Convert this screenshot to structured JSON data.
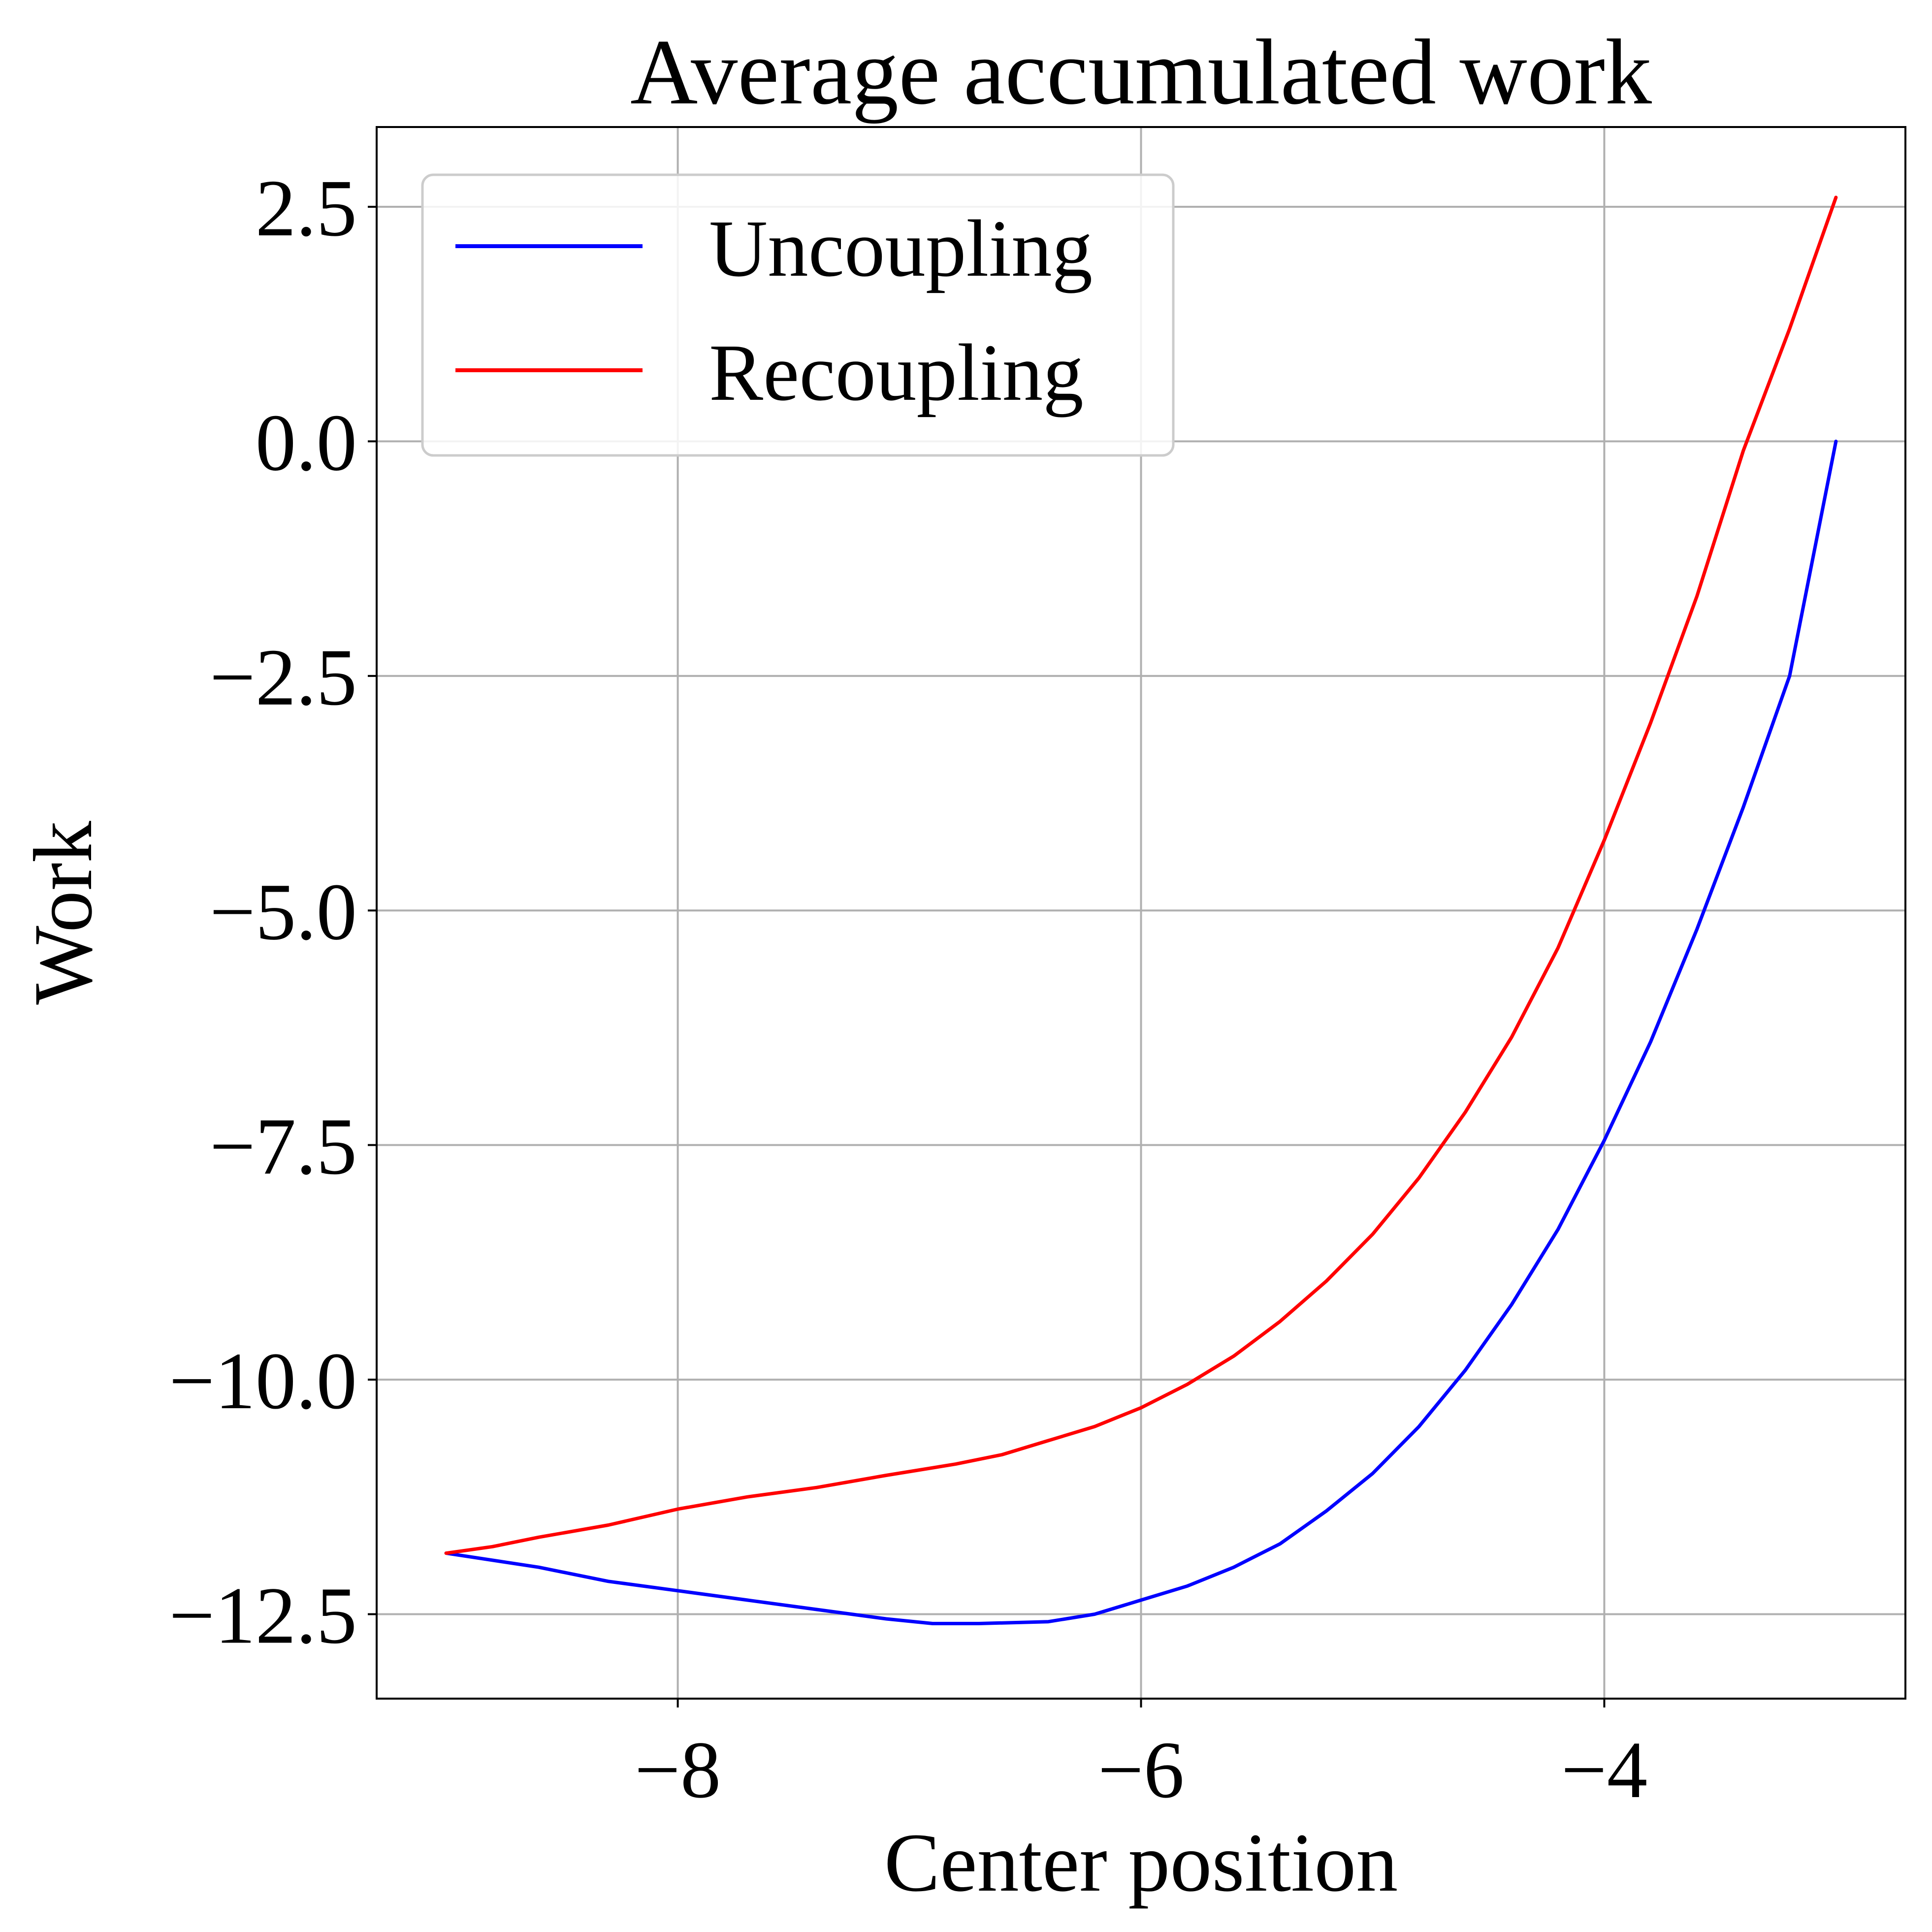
{
  "chart_data": {
    "type": "line",
    "title": "Average accumulated work",
    "xlabel": "Center position",
    "ylabel": "Work",
    "xlim": [
      -9.3,
      -2.7
    ],
    "ylim": [
      -13.4,
      3.35
    ],
    "xticks": [
      -8,
      -6,
      -4
    ],
    "xtick_labels": [
      "−8",
      "−6",
      "−4"
    ],
    "yticks": [
      2.5,
      0.0,
      -2.5,
      -5.0,
      -7.5,
      -10.0,
      -12.5
    ],
    "ytick_labels": [
      "2.5",
      "0.0",
      "−2.5",
      "−5.0",
      "−7.5",
      "−10.0",
      "−12.5"
    ],
    "grid": true,
    "legend_position": "top-left",
    "series": [
      {
        "name": "Uncoupling",
        "color": "#0000ff",
        "x": [
          -9.0,
          -8.6,
          -8.3,
          -8.0,
          -7.7,
          -7.4,
          -7.1,
          -6.9,
          -6.7,
          -6.4,
          -6.2,
          -6.0,
          -5.8,
          -5.6,
          -5.4,
          -5.2,
          -5.0,
          -4.8,
          -4.6,
          -4.4,
          -4.2,
          -4.0,
          -3.8,
          -3.6,
          -3.4,
          -3.2,
          -3.0
        ],
        "y": [
          -11.85,
          -12.0,
          -12.15,
          -12.25,
          -12.35,
          -12.45,
          -12.55,
          -12.6,
          -12.6,
          -12.58,
          -12.5,
          -12.35,
          -12.2,
          -12.0,
          -11.75,
          -11.4,
          -11.0,
          -10.5,
          -9.9,
          -9.2,
          -8.4,
          -7.45,
          -6.4,
          -5.2,
          -3.9,
          -2.5,
          0.0
        ]
      },
      {
        "name": "Recoupling",
        "color": "#ff0000",
        "x": [
          -9.0,
          -8.8,
          -8.6,
          -8.3,
          -8.0,
          -7.7,
          -7.4,
          -7.1,
          -6.8,
          -6.6,
          -6.4,
          -6.2,
          -6.0,
          -5.8,
          -5.6,
          -5.4,
          -5.2,
          -5.0,
          -4.8,
          -4.6,
          -4.4,
          -4.2,
          -4.0,
          -3.8,
          -3.6,
          -3.4,
          -3.2,
          -3.0
        ],
        "y": [
          -11.85,
          -11.78,
          -11.68,
          -11.55,
          -11.38,
          -11.25,
          -11.15,
          -11.02,
          -10.9,
          -10.8,
          -10.65,
          -10.5,
          -10.3,
          -10.05,
          -9.75,
          -9.38,
          -8.95,
          -8.45,
          -7.85,
          -7.15,
          -6.35,
          -5.4,
          -4.25,
          -3.0,
          -1.65,
          -0.1,
          1.2,
          2.6
        ]
      }
    ]
  }
}
